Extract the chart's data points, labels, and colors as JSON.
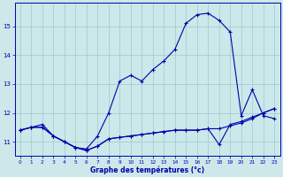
{
  "xlabel": "Graphe des températures (°c)",
  "bg_color": "#cce8ea",
  "grid_color": "#99cccc",
  "line_color": "#0000aa",
  "xlim": [
    -0.5,
    23.5
  ],
  "ylim": [
    10.5,
    15.8
  ],
  "yticks": [
    11,
    12,
    13,
    14,
    15
  ],
  "xticks": [
    0,
    1,
    2,
    3,
    4,
    5,
    6,
    7,
    8,
    9,
    10,
    11,
    12,
    13,
    14,
    15,
    16,
    17,
    18,
    19,
    20,
    21,
    22,
    23
  ],
  "curve_main_x": [
    0,
    1,
    2,
    3,
    4,
    5,
    6,
    7,
    8,
    9,
    10,
    11,
    12,
    13,
    14,
    15,
    16,
    17,
    18,
    19,
    20,
    21,
    22,
    23
  ],
  "curve_main_y": [
    11.4,
    11.5,
    11.6,
    11.2,
    11.0,
    10.8,
    10.75,
    11.2,
    12.0,
    13.1,
    13.3,
    13.1,
    13.5,
    13.8,
    14.2,
    15.1,
    15.4,
    15.45,
    15.2,
    14.8,
    11.9,
    12.8,
    11.9,
    11.8
  ],
  "curve_low_x": [
    0,
    1,
    2,
    3,
    4,
    5,
    6,
    7,
    8,
    9,
    10,
    11,
    12,
    13,
    14,
    15,
    16,
    17,
    18,
    19,
    20,
    21,
    22,
    23
  ],
  "curve_low_y": [
    11.4,
    11.5,
    11.5,
    11.2,
    11.0,
    10.8,
    10.7,
    10.85,
    11.1,
    11.15,
    11.2,
    11.25,
    11.3,
    11.35,
    11.4,
    11.4,
    11.4,
    11.45,
    11.45,
    11.55,
    11.65,
    11.8,
    12.0,
    12.15
  ],
  "curve_mid_x": [
    0,
    1,
    2,
    3,
    4,
    5,
    6,
    7,
    8,
    9,
    10,
    11,
    12,
    13,
    14,
    15,
    16,
    17,
    18,
    19,
    20,
    21,
    22,
    23
  ],
  "curve_mid_y": [
    11.4,
    11.5,
    11.5,
    11.2,
    11.0,
    10.8,
    10.7,
    10.85,
    11.1,
    11.15,
    11.2,
    11.25,
    11.3,
    11.35,
    11.4,
    11.4,
    11.4,
    11.45,
    10.9,
    11.6,
    11.7,
    11.85,
    12.0,
    12.15
  ]
}
